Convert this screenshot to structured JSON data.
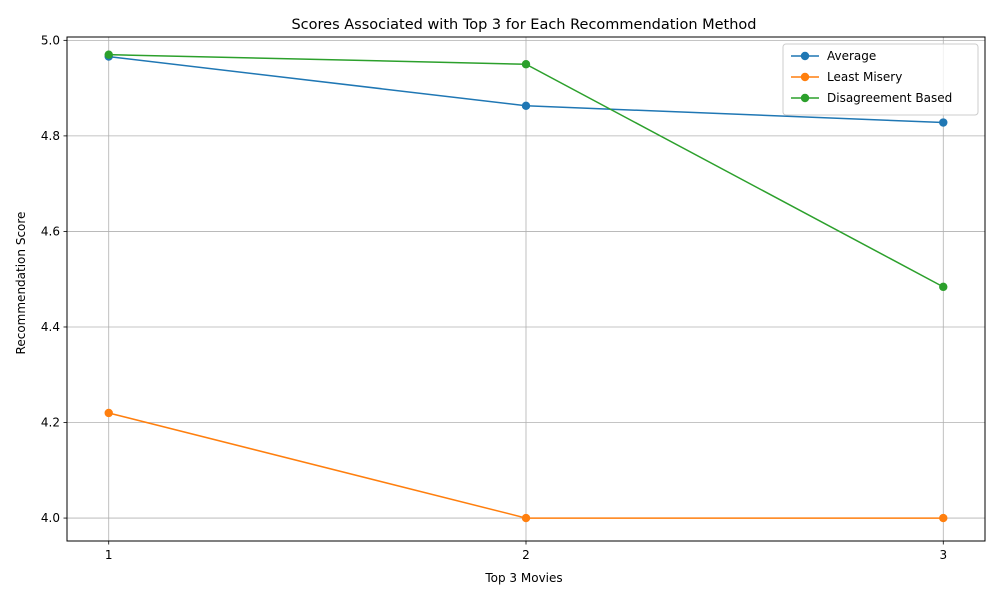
{
  "chart_data": {
    "type": "line",
    "title": "Scores Associated with Top 3 for Each Recommendation Method",
    "xlabel": "Top 3 Movies",
    "ylabel": "Recommendation Score",
    "x": [
      1,
      2,
      3
    ],
    "xticks": [
      "1",
      "2",
      "3"
    ],
    "yticks": [
      "4.0",
      "4.2",
      "4.4",
      "4.6",
      "4.8",
      "5.0"
    ],
    "xlim": [
      0.9,
      3.1
    ],
    "ylim": [
      3.952,
      5.007
    ],
    "grid": true,
    "legend_position": "top-right",
    "series": [
      {
        "name": "Average",
        "color": "#1f77b4",
        "values": [
          4.966,
          4.863,
          4.828
        ]
      },
      {
        "name": "Least Misery",
        "color": "#ff7f0e",
        "values": [
          4.22,
          4.0,
          4.0
        ]
      },
      {
        "name": "Disagreement Based",
        "color": "#2ca02c",
        "values": [
          4.97,
          4.95,
          4.484
        ]
      }
    ]
  }
}
